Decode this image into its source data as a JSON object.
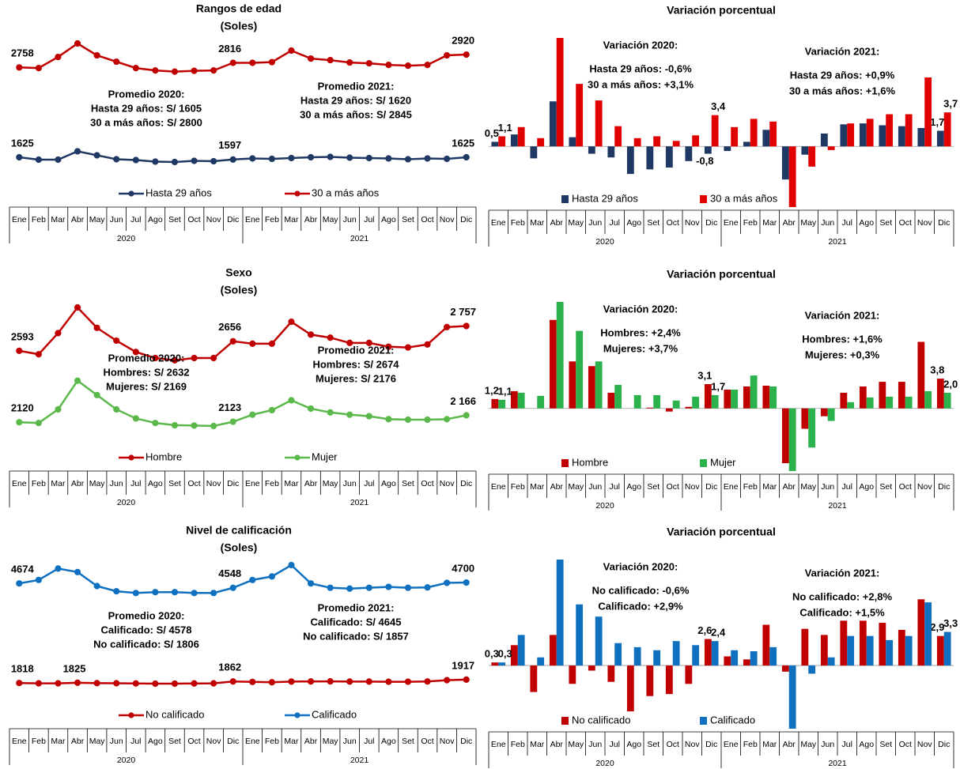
{
  "chart_data": [
    {
      "type": "line",
      "title": "Rangos de edad",
      "subtitle": "(Soles)",
      "categories": [
        "Ene",
        "Feb",
        "Mar",
        "Abr",
        "May",
        "Jun",
        "Jul",
        "Ago",
        "Set",
        "Oct",
        "Nov",
        "Dic",
        "Ene",
        "Feb",
        "Mar",
        "Abr",
        "May",
        "Jun",
        "Jul",
        "Ago",
        "Set",
        "Oct",
        "Nov",
        "Dic"
      ],
      "years": [
        "2020",
        "2021"
      ],
      "series": [
        {
          "name": "Hasta 29 años",
          "color": "#203864",
          "values": [
            1625,
            1595,
            1595,
            1700,
            1650,
            1600,
            1590,
            1570,
            1565,
            1580,
            1575,
            1597,
            1610,
            1605,
            1615,
            1625,
            1630,
            1620,
            1615,
            1610,
            1600,
            1610,
            1605,
            1625
          ],
          "value_labels": [
            "1625",
            null,
            null,
            null,
            null,
            null,
            null,
            null,
            null,
            null,
            null,
            "1597",
            null,
            null,
            null,
            null,
            null,
            null,
            null,
            null,
            null,
            null,
            null,
            "1625"
          ]
        },
        {
          "name": "30 a más años",
          "color": "#c00000",
          "values": [
            2758,
            2750,
            2890,
            3060,
            2910,
            2830,
            2750,
            2720,
            2705,
            2715,
            2720,
            2816,
            2816,
            2825,
            2970,
            2870,
            2850,
            2820,
            2810,
            2790,
            2780,
            2790,
            2910,
            2920
          ],
          "value_labels": [
            "2758",
            null,
            null,
            null,
            null,
            null,
            null,
            null,
            null,
            null,
            null,
            "2816",
            null,
            null,
            null,
            null,
            null,
            null,
            null,
            null,
            null,
            null,
            null,
            "2920"
          ]
        }
      ],
      "annotations": [
        [
          "Promedio 2020:",
          "Hasta 29 años: S/ 1605",
          "30 a más años: S/ 2800"
        ],
        [
          "Promedio 2021:",
          "Hasta 29 años: S/ 1620",
          "30 a más años: S/ 2845"
        ]
      ]
    },
    {
      "type": "bar",
      "title": "Variación porcentual",
      "categories": [
        "Ene",
        "Feb",
        "Mar",
        "Abr",
        "May",
        "Jun",
        "Jul",
        "Ago",
        "Set",
        "Oct",
        "Nov",
        "Dic",
        "Ene",
        "Feb",
        "Mar",
        "Abr",
        "May",
        "Jun",
        "Jul",
        "Ago",
        "Set",
        "Oct",
        "Nov",
        "Dic"
      ],
      "years": [
        "2020",
        "2021"
      ],
      "series": [
        {
          "name": "Hasta 29 años",
          "color": "#203864",
          "values": [
            0.5,
            1.3,
            -1.3,
            4.9,
            1.0,
            -0.8,
            -1.2,
            -3.0,
            -2.5,
            -2.3,
            -1.6,
            -0.8,
            -0.5,
            0.5,
            1.8,
            -3.6,
            -0.9,
            1.4,
            2.4,
            2.5,
            2.3,
            2.2,
            2.0,
            1.7
          ],
          "value_labels": [
            "0,5",
            null,
            null,
            null,
            null,
            null,
            null,
            null,
            null,
            null,
            null,
            "-0,8",
            null,
            null,
            null,
            null,
            null,
            null,
            null,
            null,
            null,
            null,
            null,
            "1,7"
          ]
        },
        {
          "name": "30 a más años",
          "color": "#e00000",
          "values": [
            1.1,
            2.1,
            0.9,
            11.8,
            6.8,
            5.0,
            2.2,
            0.9,
            1.1,
            0.6,
            1.2,
            3.4,
            2.1,
            3.0,
            2.7,
            -6.6,
            -2.2,
            -0.4,
            2.5,
            3.0,
            3.5,
            3.5,
            7.5,
            3.7
          ],
          "value_labels": [
            "1,1",
            null,
            null,
            null,
            null,
            null,
            null,
            null,
            null,
            null,
            null,
            "3,4",
            null,
            null,
            null,
            null,
            null,
            null,
            null,
            null,
            null,
            null,
            null,
            "3,7"
          ]
        }
      ],
      "annotations": [
        [
          "Variación 2020:",
          "Hasta 29 años: -0,6%",
          "30 a más años: +3,1%"
        ],
        [
          "Variación 2021:",
          "Hasta 29 años: +0,9%",
          "30 a más años: +1,6%"
        ]
      ]
    },
    {
      "type": "line",
      "title": "Sexo",
      "subtitle": "(Soles)",
      "categories": [
        "Ene",
        "Feb",
        "Mar",
        "Abr",
        "May",
        "Jun",
        "Jul",
        "Ago",
        "Set",
        "Oct",
        "Nov",
        "Dic",
        "Ene",
        "Feb",
        "Mar",
        "Abr",
        "May",
        "Jun",
        "Jul",
        "Ago",
        "Set",
        "Oct",
        "Nov",
        "Dic"
      ],
      "years": [
        "2020",
        "2021"
      ],
      "series": [
        {
          "name": "Hombre",
          "color": "#c00000",
          "values": [
            2593,
            2570,
            2710,
            2880,
            2745,
            2660,
            2585,
            2545,
            2530,
            2545,
            2545,
            2656,
            2640,
            2640,
            2785,
            2700,
            2680,
            2645,
            2645,
            2620,
            2615,
            2635,
            2750,
            2757
          ],
          "value_labels": [
            "2593",
            null,
            null,
            null,
            null,
            null,
            null,
            null,
            null,
            null,
            null,
            "2656",
            null,
            null,
            null,
            null,
            null,
            null,
            null,
            null,
            null,
            null,
            null,
            "2 757"
          ]
        },
        {
          "name": "Mujer",
          "color": "#5bb84a",
          "values": [
            2120,
            2115,
            2205,
            2395,
            2300,
            2205,
            2145,
            2115,
            2100,
            2098,
            2095,
            2123,
            2170,
            2200,
            2265,
            2210,
            2185,
            2170,
            2160,
            2140,
            2137,
            2137,
            2140,
            2166
          ],
          "value_labels": [
            "2120",
            null,
            null,
            null,
            null,
            null,
            null,
            null,
            null,
            null,
            null,
            "2123",
            null,
            null,
            null,
            null,
            null,
            null,
            null,
            null,
            null,
            null,
            null,
            "2 166"
          ]
        }
      ],
      "annotations": [
        [
          "Promedio 2020:",
          "Hombres: S/ 2632",
          "Mujeres:   S/ 2169"
        ],
        [
          "Promedio 2021:",
          "Hombres: S/ 2674",
          "Mujeres:    S/ 2176"
        ]
      ]
    },
    {
      "type": "bar",
      "title": "Variación porcentual",
      "categories": [
        "Ene",
        "Feb",
        "Mar",
        "Abr",
        "May",
        "Jun",
        "Jul",
        "Ago",
        "Set",
        "Oct",
        "Nov",
        "Dic",
        "Ene",
        "Feb",
        "Mar",
        "Abr",
        "May",
        "Jun",
        "Jul",
        "Ago",
        "Set",
        "Oct",
        "Nov",
        "Dic"
      ],
      "years": [
        "2020",
        "2021"
      ],
      "series": [
        {
          "name": "Hombre",
          "color": "#c00000",
          "values": [
            1.2,
            2.2,
            0,
            11.3,
            6.0,
            5.4,
            2.0,
            0,
            0.1,
            -0.4,
            0.2,
            3.1,
            2.4,
            2.8,
            2.9,
            -7.0,
            -2.6,
            -1.0,
            2.0,
            2.8,
            3.4,
            3.4,
            8.5,
            3.8
          ],
          "value_labels": [
            "1,2",
            null,
            null,
            null,
            null,
            null,
            null,
            null,
            null,
            null,
            null,
            "3,1",
            null,
            null,
            null,
            null,
            null,
            null,
            null,
            null,
            null,
            null,
            null,
            "3,8"
          ]
        },
        {
          "name": "Mujer",
          "color": "#2bb24c",
          "values": [
            1.1,
            2.0,
            1.6,
            13.6,
            9.9,
            6.0,
            3.0,
            1.7,
            1.7,
            1.0,
            1.5,
            1.7,
            2.4,
            4.2,
            2.8,
            -8.0,
            -5.0,
            -1.6,
            0.8,
            1.4,
            1.5,
            1.5,
            2.2,
            2.0
          ],
          "value_labels": [
            "1,1",
            null,
            null,
            null,
            null,
            null,
            null,
            null,
            null,
            null,
            null,
            "1,7",
            null,
            null,
            null,
            null,
            null,
            null,
            null,
            null,
            null,
            null,
            null,
            "2,0"
          ]
        }
      ],
      "annotations": [
        [
          "Variación 2020:",
          "Hombres: +2,4%",
          "Mujeres: +3,7%"
        ],
        [
          "Variación 2021:",
          "Hombres: +1,6%",
          "Mujeres:  +0,3%"
        ]
      ]
    },
    {
      "type": "line",
      "title": "Nivel de calificación",
      "subtitle": "(Soles)",
      "categories": [
        "Ene",
        "Feb",
        "Mar",
        "Abr",
        "May",
        "Jun",
        "Jul",
        "Ago",
        "Set",
        "Oct",
        "Nov",
        "Dic",
        "Ene",
        "Feb",
        "Mar",
        "Abr",
        "May",
        "Jun",
        "Jul",
        "Ago",
        "Set",
        "Oct",
        "Nov",
        "Dic"
      ],
      "years": [
        "2020",
        "2021"
      ],
      "series": [
        {
          "name": "No calificado",
          "color": "#c00000",
          "values": [
            1818,
            1808,
            1808,
            1825,
            1815,
            1812,
            1805,
            1800,
            1800,
            1805,
            1808,
            1862,
            1850,
            1840,
            1860,
            1862,
            1865,
            1860,
            1860,
            1855,
            1855,
            1862,
            1900,
            1917
          ],
          "value_labels": [
            "1818",
            null,
            null,
            "1825",
            null,
            null,
            null,
            null,
            null,
            null,
            null,
            "1862",
            null,
            null,
            null,
            null,
            null,
            null,
            null,
            null,
            null,
            null,
            null,
            "1917"
          ]
        },
        {
          "name": "Calificado",
          "color": "#0f70c0",
          "values": [
            4674,
            4774,
            5100,
            5000,
            4600,
            4450,
            4400,
            4425,
            4425,
            4400,
            4400,
            4548,
            4774,
            4874,
            5200,
            4674,
            4550,
            4525,
            4550,
            4575,
            4550,
            4560,
            4690,
            4700
          ],
          "value_labels": [
            "4674",
            null,
            null,
            null,
            null,
            null,
            null,
            null,
            null,
            null,
            null,
            "4548",
            null,
            null,
            null,
            null,
            null,
            null,
            null,
            null,
            null,
            null,
            null,
            "4700"
          ]
        }
      ],
      "annotations": [
        [
          "Promedio 2020:",
          "Calificado:       S/ 4578",
          "No calificado:  S/ 1806"
        ],
        [
          "Promedio 2021:",
          "Calificado:          S/ 4645",
          "No calificado:  S/ 1857"
        ]
      ]
    },
    {
      "type": "bar",
      "title": "Variación porcentual",
      "categories": [
        "Ene",
        "Feb",
        "Mar",
        "Abr",
        "May",
        "Jun",
        "Jul",
        "Ago",
        "Set",
        "Oct",
        "Nov",
        "Dic",
        "Ene",
        "Feb",
        "Mar",
        "Abr",
        "May",
        "Jun",
        "Jul",
        "Ago",
        "Set",
        "Oct",
        "Nov",
        "Dic"
      ],
      "years": [
        "2020",
        "2021"
      ],
      "series": [
        {
          "name": "No calificado",
          "color": "#c00000",
          "values": [
            0.3,
            2.0,
            -2.6,
            3.0,
            -1.8,
            -0.5,
            -1.6,
            -4.5,
            -3.0,
            -2.8,
            -1.8,
            2.6,
            0.9,
            0.6,
            4.0,
            -0.6,
            3.6,
            3.0,
            4.4,
            4.4,
            4.2,
            3.5,
            6.5,
            2.9
          ],
          "value_labels": [
            "0,3",
            null,
            null,
            null,
            null,
            null,
            null,
            null,
            null,
            null,
            null,
            "2,6",
            null,
            null,
            null,
            null,
            null,
            null,
            null,
            null,
            null,
            null,
            null,
            "2,9"
          ]
        },
        {
          "name": "Calificado",
          "color": "#0f70c0",
          "values": [
            0.3,
            3.0,
            0.8,
            10.4,
            6.0,
            4.8,
            2.2,
            1.8,
            1.5,
            2.4,
            2.0,
            2.4,
            1.5,
            1.4,
            1.8,
            -6.2,
            -0.8,
            0.8,
            2.9,
            2.9,
            2.5,
            2.9,
            6.2,
            3.3
          ],
          "value_labels": [
            "0,3",
            null,
            null,
            null,
            null,
            null,
            null,
            null,
            null,
            null,
            null,
            "2,4",
            null,
            null,
            null,
            null,
            null,
            null,
            null,
            null,
            null,
            null,
            null,
            "3,3"
          ]
        }
      ],
      "annotations": [
        [
          "Variación 2020:",
          "No calificado: -0,6%",
          "Calificado:  +2,9%"
        ],
        [
          "Variación 2021:",
          "No calificado: +2,8%",
          "Calificado:   +1,5%"
        ]
      ]
    }
  ]
}
